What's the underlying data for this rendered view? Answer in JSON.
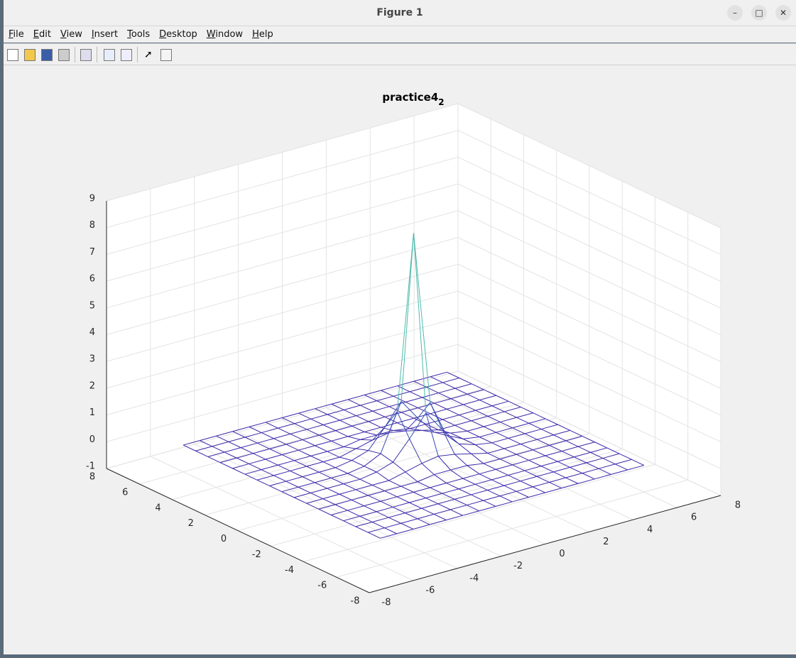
{
  "window": {
    "title": "Figure 1",
    "menu": [
      "File",
      "Edit",
      "View",
      "Insert",
      "Tools",
      "Desktop",
      "Window",
      "Help"
    ]
  },
  "chart_data": {
    "type": "mesh",
    "title": {
      "text": "practice4",
      "subscript": "2"
    },
    "x": [
      -6,
      -5.25,
      -4.5,
      -3.75,
      -3,
      -2.25,
      -1.5,
      -0.75,
      0,
      0.75,
      1.5,
      2.25,
      3,
      3.75,
      4.5,
      5.25,
      6
    ],
    "y": [
      -6,
      -5.25,
      -4.5,
      -3.75,
      -3,
      -2.25,
      -1.5,
      -0.75,
      0,
      0.75,
      1.5,
      2.25,
      3,
      3.75,
      4.5,
      5.25,
      6
    ],
    "z": [
      [
        0,
        0,
        0,
        0,
        0,
        0,
        0,
        0,
        0,
        0,
        0,
        0,
        0,
        0,
        0,
        0,
        0
      ],
      [
        0,
        0,
        0,
        0,
        0,
        0,
        0,
        0,
        0,
        0,
        0,
        0,
        0,
        0,
        0,
        0,
        0
      ],
      [
        0,
        0,
        0,
        0,
        0,
        0,
        0,
        0,
        0,
        0,
        0,
        0,
        0,
        0,
        0,
        0,
        0
      ],
      [
        0,
        0,
        0,
        0,
        0,
        0,
        0,
        0,
        0,
        0,
        0,
        0,
        0,
        0,
        0,
        0,
        0
      ],
      [
        0,
        0,
        0,
        0,
        0,
        0,
        0,
        0,
        0,
        0,
        0,
        0,
        0,
        0,
        0,
        0,
        0
      ],
      [
        0,
        0,
        0,
        0,
        0,
        0,
        0,
        0.1,
        0.1,
        0.1,
        0,
        0,
        0,
        0,
        0,
        0,
        0
      ],
      [
        0,
        0,
        0,
        0,
        0,
        0,
        0.15,
        0.3,
        0.4,
        0.3,
        0.15,
        0,
        0,
        0,
        0,
        0,
        0
      ],
      [
        0,
        0,
        0,
        0,
        0,
        0.1,
        0.3,
        1.0,
        1.8,
        1.0,
        0.3,
        0.1,
        0,
        0,
        0,
        0,
        0
      ],
      [
        0,
        0,
        0,
        0,
        0,
        0.1,
        0.4,
        1.8,
        8.3,
        1.8,
        0.4,
        0.1,
        0,
        0,
        0,
        0,
        0
      ],
      [
        0,
        0,
        0,
        0,
        0,
        0.1,
        0.3,
        1.0,
        1.8,
        1.0,
        0.3,
        0.1,
        0,
        0,
        0,
        0,
        0
      ],
      [
        0,
        0,
        0,
        0,
        0,
        0,
        0.15,
        0.3,
        0.4,
        0.3,
        0.15,
        0,
        0,
        0,
        0,
        0,
        0
      ],
      [
        0,
        0,
        0,
        0,
        0,
        0,
        0,
        0.1,
        0.1,
        0.1,
        0,
        0,
        0,
        0,
        0,
        0,
        0
      ],
      [
        0,
        0,
        0,
        0,
        0,
        0,
        0,
        0,
        0,
        0,
        0,
        0,
        0,
        0,
        0,
        0,
        0
      ],
      [
        0,
        0,
        0,
        0,
        0,
        0,
        0,
        0,
        0,
        0,
        0,
        0,
        0,
        0,
        0,
        0,
        0
      ],
      [
        0,
        0,
        0,
        0,
        0,
        0,
        0,
        0,
        0,
        0,
        0,
        0,
        0,
        0,
        0,
        0,
        0
      ],
      [
        0,
        0,
        0,
        0,
        0,
        0,
        0,
        0,
        0,
        0,
        0,
        0,
        0,
        0,
        0,
        0,
        0
      ],
      [
        0,
        0,
        0,
        0,
        0,
        0,
        0,
        0,
        0,
        0,
        0,
        0,
        0,
        0,
        0,
        0,
        0
      ]
    ],
    "xlim": [
      -8,
      8
    ],
    "ylim": [
      -8,
      8
    ],
    "zlim": [
      -1,
      9
    ],
    "xticks": [
      -8,
      -6,
      -4,
      -2,
      0,
      2,
      4,
      6,
      8
    ],
    "yticks": [
      -8,
      -6,
      -4,
      -2,
      0,
      2,
      4,
      6,
      8
    ],
    "zticks": [
      -1,
      0,
      1,
      2,
      3,
      4,
      5,
      6,
      7,
      8,
      9
    ],
    "grid": true,
    "colormap": [
      "#3e26a8",
      "#1fa8d8",
      "#f9fb0e"
    ]
  }
}
